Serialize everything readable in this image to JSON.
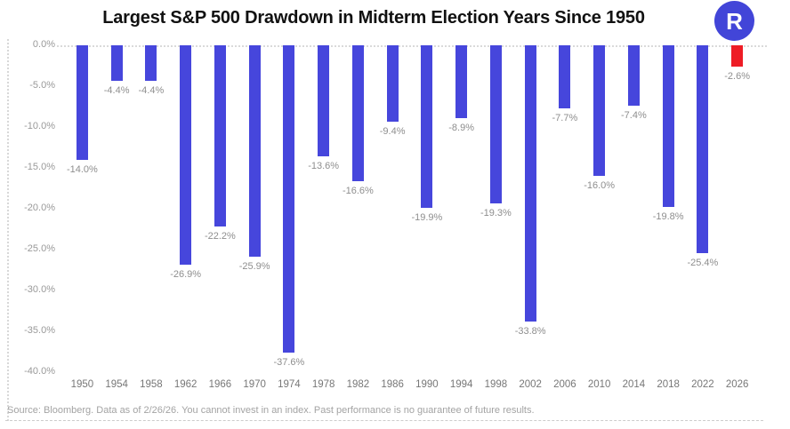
{
  "title": "Largest S&P 500 Drawdown in Midterm Election Years Since 1950",
  "logo": {
    "letter": "R"
  },
  "source_note": "Source: Bloomberg. Data as of 2/26/26. You cannot invest in an index. Past performance is no guarantee of future results.",
  "colors": {
    "bar": "#4646dc",
    "highlight_bar": "#ee1c25",
    "logo_bg": "#4245d8",
    "value_label": "#8e8e8e",
    "axis_label": "#999999",
    "x_label": "#777777",
    "grid": "#dadada",
    "source": "#a3a3a3",
    "title": "#111111"
  },
  "chart_data": {
    "type": "bar",
    "title": "Largest S&P 500 Drawdown in Midterm Election Years Since 1950",
    "xlabel": "",
    "ylabel": "",
    "legend_position": "none",
    "grid": "zero-line-dotted-only",
    "ylim": [
      -40,
      0
    ],
    "ytick_values": [
      0,
      -5,
      -10,
      -15,
      -20,
      -25,
      -30,
      -35,
      -40
    ],
    "ytick_labels": [
      "0.0%",
      "-5.0%",
      "-10.0%",
      "-15.0%",
      "-20.0%",
      "-25.0%",
      "-30.0%",
      "-35.0%",
      "-40.0%"
    ],
    "categories": [
      "1950",
      "1954",
      "1958",
      "1962",
      "1966",
      "1970",
      "1974",
      "1978",
      "1982",
      "1986",
      "1990",
      "1994",
      "1998",
      "2002",
      "2006",
      "2010",
      "2014",
      "2018",
      "2022",
      "2026"
    ],
    "values": [
      -14.0,
      -4.4,
      -4.4,
      -26.9,
      -22.2,
      -25.9,
      -37.6,
      -13.6,
      -16.6,
      -9.4,
      -19.9,
      -8.9,
      -19.3,
      -33.8,
      -7.7,
      -16.0,
      -7.4,
      -19.8,
      -25.4,
      -2.6
    ],
    "bar_labels": [
      "-14.0%",
      "-4.4%",
      "-4.4%",
      "-26.9%",
      "-22.2%",
      "-25.9%",
      "-37.6%",
      "-13.6%",
      "-16.6%",
      "-9.4%",
      "-19.9%",
      "-8.9%",
      "-19.3%",
      "-33.8%",
      "-7.7%",
      "-16.0%",
      "-7.4%",
      "-19.8%",
      "-25.4%",
      "-2.6%"
    ],
    "highlight_category": "2026"
  }
}
